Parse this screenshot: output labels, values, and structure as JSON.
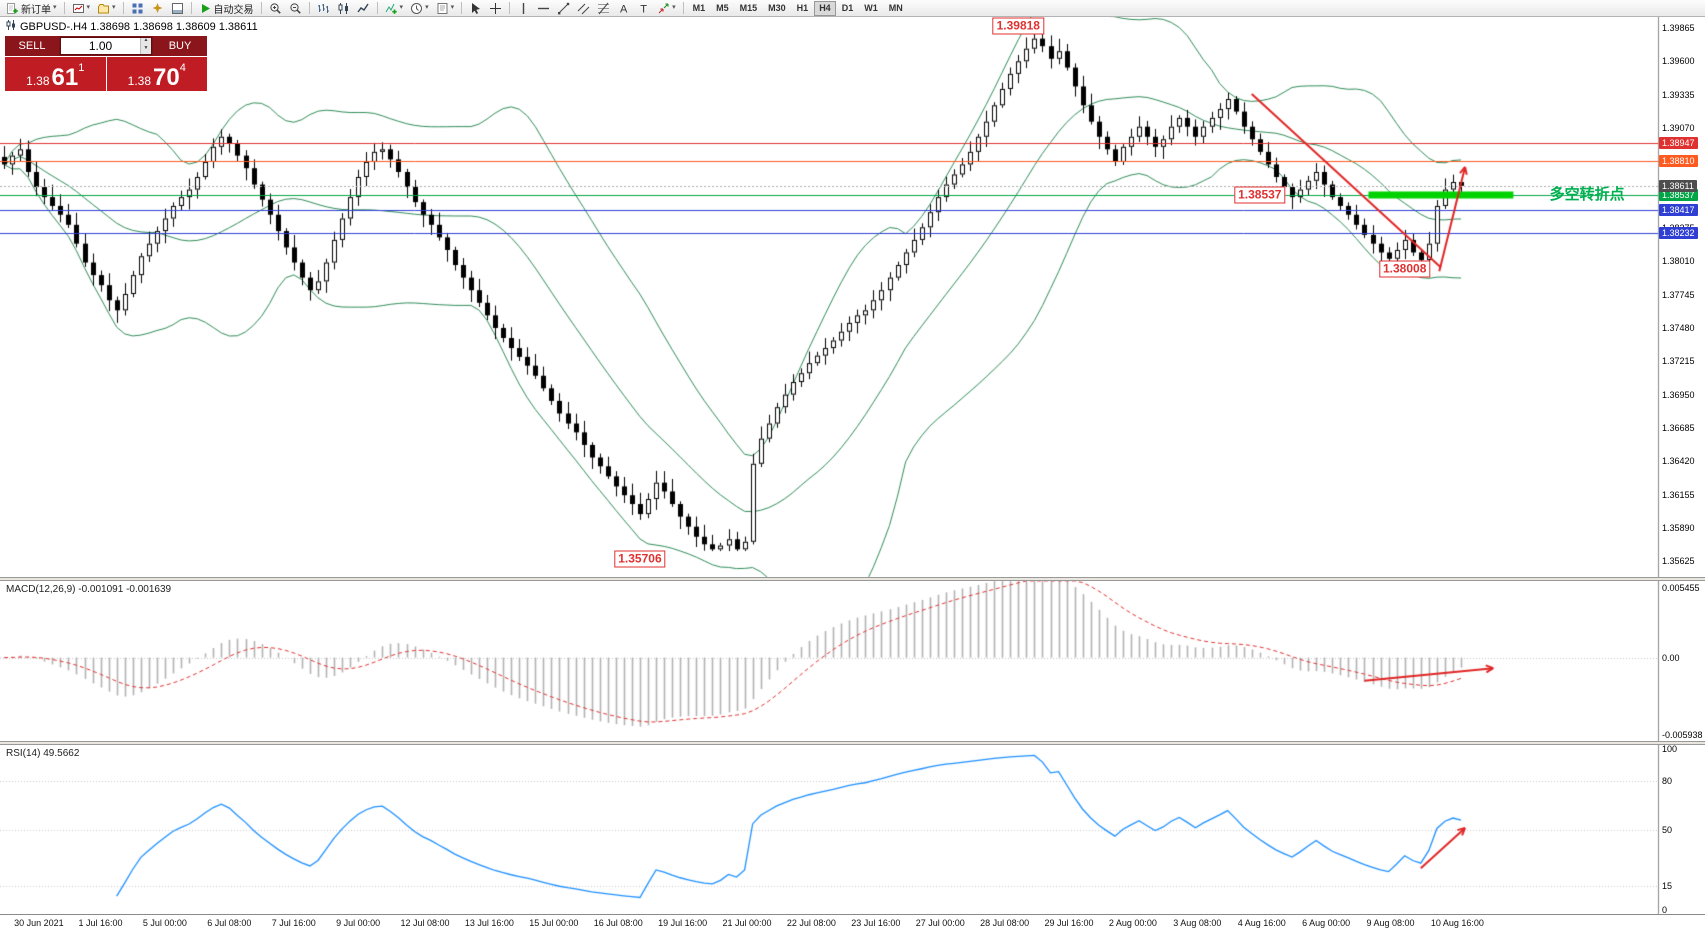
{
  "toolbar": {
    "items": [
      {
        "type": "button",
        "name": "new-order-button",
        "icon": "new-order",
        "label": "新订单",
        "caret": true
      },
      {
        "type": "sep"
      },
      {
        "type": "button",
        "name": "new-chart-button",
        "icon": "chart-window",
        "caret": true
      },
      {
        "type": "button",
        "name": "profiles-button",
        "icon": "profiles",
        "caret": true
      },
      {
        "type": "sep"
      },
      {
        "type": "button",
        "name": "market-watch-button",
        "icon": "grid"
      },
      {
        "type": "button",
        "name": "navigator-button",
        "icon": "star"
      },
      {
        "type": "button",
        "name": "terminal-button",
        "icon": "terminal"
      },
      {
        "type": "sep"
      },
      {
        "type": "button",
        "name": "autotrading-button",
        "icon": "play",
        "label": "自动交易"
      },
      {
        "type": "sep"
      },
      {
        "type": "button",
        "name": "zoom-in-button",
        "icon": "zoom-in"
      },
      {
        "type": "button",
        "name": "zoom-out-button",
        "icon": "zoom-out"
      },
      {
        "type": "sep"
      },
      {
        "type": "button",
        "name": "bar-chart-button",
        "icon": "bars"
      },
      {
        "type": "button",
        "name": "candlestick-chart-button",
        "icon": "candles"
      },
      {
        "type": "button",
        "name": "line-chart-button",
        "icon": "line"
      },
      {
        "type": "sep"
      },
      {
        "type": "button",
        "name": "indicators-button",
        "icon": "indicator",
        "caret": true
      },
      {
        "type": "button",
        "name": "periods-button",
        "icon": "clock",
        "caret": true
      },
      {
        "type": "button",
        "name": "templates-button",
        "icon": "template",
        "caret": true
      },
      {
        "type": "sep"
      },
      {
        "type": "button",
        "name": "cursor-button",
        "icon": "cursor"
      },
      {
        "type": "button",
        "name": "crosshair-button",
        "icon": "crosshair"
      },
      {
        "type": "sep"
      },
      {
        "type": "button",
        "name": "vertical-line-button",
        "icon": "vline"
      },
      {
        "type": "button",
        "name": "horizontal-line-button",
        "icon": "hline"
      },
      {
        "type": "button",
        "name": "trendline-button",
        "icon": "trend"
      },
      {
        "type": "button",
        "name": "channel-button",
        "icon": "channel"
      },
      {
        "type": "button",
        "name": "fibonacci-button",
        "icon": "fibo"
      },
      {
        "type": "button",
        "name": "text-button",
        "icon": "textA"
      },
      {
        "type": "button",
        "name": "label-button",
        "icon": "textT"
      },
      {
        "type": "button",
        "name": "arrows-button",
        "icon": "arrows",
        "caret": true
      },
      {
        "type": "sep"
      },
      {
        "type": "tf",
        "name": "timeframe-m1-button",
        "label": "M1"
      },
      {
        "type": "tf",
        "name": "timeframe-m5-button",
        "label": "M5"
      },
      {
        "type": "tf",
        "name": "timeframe-m15-button",
        "label": "M15"
      },
      {
        "type": "tf",
        "name": "timeframe-m30-button",
        "label": "M30"
      },
      {
        "type": "tf",
        "name": "timeframe-h1-button",
        "label": "H1"
      },
      {
        "type": "tf",
        "name": "timeframe-h4-button",
        "label": "H4",
        "active": true
      },
      {
        "type": "tf",
        "name": "timeframe-d1-button",
        "label": "D1"
      },
      {
        "type": "tf",
        "name": "timeframe-w1-button",
        "label": "W1"
      },
      {
        "type": "tf",
        "name": "timeframe-mn-button",
        "label": "MN"
      }
    ]
  },
  "chart": {
    "symbol_line": "GBPUSD-.H4 1.38698 1.38698 1.38609 1.38611"
  },
  "one_click": {
    "sell_label": "SELL",
    "buy_label": "BUY",
    "volume": "1.00",
    "sell_price_small": "1.38",
    "sell_price_big": "61",
    "sell_price_sup": "1",
    "buy_price_small": "1.38",
    "buy_price_big": "70",
    "buy_price_sup": "4"
  },
  "chart_data": {
    "type": "candlestick",
    "symbol": "GBPUSD-",
    "period": "H4",
    "view": {
      "bar_width": 8.05,
      "price_min": 1.355,
      "price_max": 1.3996
    },
    "closes": [
      1.3878,
      1.3885,
      1.389,
      1.3872,
      1.386,
      1.3852,
      1.3845,
      1.3838,
      1.383,
      1.3815,
      1.38,
      1.379,
      1.3782,
      1.377,
      1.3762,
      1.3775,
      1.379,
      1.3805,
      1.3815,
      1.3825,
      1.3835,
      1.3845,
      1.3852,
      1.3858,
      1.3868,
      1.388,
      1.3892,
      1.39,
      1.3895,
      1.3885,
      1.3875,
      1.3862,
      1.385,
      1.3838,
      1.3825,
      1.3812,
      1.38,
      1.3788,
      1.3778,
      1.3785,
      1.38,
      1.3818,
      1.3835,
      1.3852,
      1.3868,
      1.388,
      1.3888,
      1.389,
      1.3882,
      1.3872,
      1.386,
      1.3848,
      1.3838,
      1.383,
      1.382,
      1.381,
      1.3798,
      1.3788,
      1.3778,
      1.3768,
      1.3758,
      1.3748,
      1.374,
      1.3732,
      1.3725,
      1.3718,
      1.371,
      1.37,
      1.369,
      1.368,
      1.3672,
      1.3665,
      1.3655,
      1.3645,
      1.3638,
      1.363,
      1.3622,
      1.3615,
      1.3608,
      1.36,
      1.3612,
      1.3625,
      1.3618,
      1.3608,
      1.3598,
      1.359,
      1.3582,
      1.3576,
      1.3572,
      1.3575,
      1.358,
      1.3572,
      1.3578,
      1.364,
      1.366,
      1.3672,
      1.3685,
      1.3695,
      1.3705,
      1.3712,
      1.372,
      1.3726,
      1.3732,
      1.3738,
      1.3745,
      1.3752,
      1.3758,
      1.3762,
      1.377,
      1.3778,
      1.3788,
      1.3798,
      1.3808,
      1.3818,
      1.3828,
      1.384,
      1.3852,
      1.3862,
      1.387,
      1.3878,
      1.3888,
      1.39,
      1.3912,
      1.3925,
      1.3938,
      1.395,
      1.396,
      1.397,
      1.3978,
      1.3972,
      1.3962,
      1.3968,
      1.3955,
      1.394,
      1.3925,
      1.3912,
      1.39,
      1.389,
      1.388,
      1.3892,
      1.39,
      1.3908,
      1.39,
      1.3892,
      1.3898,
      1.3908,
      1.3915,
      1.3908,
      1.39,
      1.3908,
      1.3915,
      1.3922,
      1.393,
      1.392,
      1.3908,
      1.3898,
      1.3888,
      1.3878,
      1.3868,
      1.386,
      1.3852,
      1.3858,
      1.3865,
      1.3872,
      1.3862,
      1.3852,
      1.3845,
      1.3838,
      1.383,
      1.3822,
      1.3815,
      1.3808,
      1.3803,
      1.381,
      1.3818,
      1.3808,
      1.3802,
      1.3815,
      1.3845,
      1.3858,
      1.3864,
      1.3861
    ],
    "extremes": [
      {
        "bar": 91,
        "low": 1.35706,
        "clamp_from": 0,
        "clamp_to": 181
      },
      {
        "bar": 128,
        "high": 1.39818,
        "clamp_from": 0,
        "clamp_to": 181
      },
      {
        "bar": 176,
        "low": 1.38008,
        "clamp_from": 160,
        "clamp_to": 181
      }
    ],
    "candle_colors": {
      "bull": "#ffffff",
      "bear": "#000000",
      "outline": "#000000"
    },
    "x_labels": [
      {
        "bar": 2,
        "text": "30 Jun 2021"
      },
      {
        "bar": 10,
        "text": "1 Jul 16:00"
      },
      {
        "bar": 18,
        "text": "5 Jul 00:00"
      },
      {
        "bar": 26,
        "text": "6 Jul 08:00"
      },
      {
        "bar": 34,
        "text": "7 Jul 16:00"
      },
      {
        "bar": 42,
        "text": "9 Jul 00:00"
      },
      {
        "bar": 50,
        "text": "12 Jul 08:00"
      },
      {
        "bar": 58,
        "text": "13 Jul 16:00"
      },
      {
        "bar": 66,
        "text": "15 Jul 00:00"
      },
      {
        "bar": 74,
        "text": "16 Jul 08:00"
      },
      {
        "bar": 82,
        "text": "19 Jul 16:00"
      },
      {
        "bar": 90,
        "text": "21 Jul 00:00"
      },
      {
        "bar": 98,
        "text": "22 Jul 08:00"
      },
      {
        "bar": 106,
        "text": "23 Jul 16:00"
      },
      {
        "bar": 114,
        "text": "27 Jul 00:00"
      },
      {
        "bar": 122,
        "text": "28 Jul 08:00"
      },
      {
        "bar": 130,
        "text": "29 Jul 16:00"
      },
      {
        "bar": 138,
        "text": "2 Aug 00:00"
      },
      {
        "bar": 146,
        "text": "3 Aug 08:00"
      },
      {
        "bar": 154,
        "text": "4 Aug 16:00"
      },
      {
        "bar": 162,
        "text": "6 Aug 00:00"
      },
      {
        "bar": 170,
        "text": "9 Aug 08:00"
      },
      {
        "bar": 178,
        "text": "10 Aug 16:00"
      }
    ],
    "y_axis": {
      "labels": [
        "1.39865",
        "1.39600",
        "1.39335",
        "1.39070",
        "1.38805",
        "1.38540",
        "1.38275",
        "1.38010",
        "1.37745",
        "1.37480",
        "1.37215",
        "1.36950",
        "1.36685",
        "1.36420",
        "1.36155",
        "1.35890",
        "1.35625"
      ]
    },
    "indicators": {
      "bollinger": {
        "period": 20,
        "deviation": 2,
        "color": "#2e8b57"
      },
      "macd": {
        "label": "MACD(12,26,9) -0.001091 -0.001639",
        "value": -0.001091,
        "signal_value": -0.001639,
        "range": {
          "max": 0.005455,
          "min": -0.005938
        },
        "axis_labels": [
          "0.005455",
          "0.00",
          "-0.005938"
        ],
        "hist_color": "#b3b3b3",
        "signal_color": "#e03131"
      },
      "rsi": {
        "label": "RSI(14) 49.5662",
        "period": 14,
        "value": 49.5662,
        "axis_labels": [
          "100",
          "80",
          "50",
          "15",
          "0"
        ],
        "levels": [
          80,
          50,
          15
        ],
        "color": "#1e90ff"
      }
    },
    "hlines": [
      {
        "price": 1.38947,
        "color": "#e03131",
        "tag": "1.38947",
        "tag_bg": "#e03131"
      },
      {
        "price": 1.3881,
        "color": "#ff5a1f",
        "tag": "1.38810",
        "tag_bg": "#ff5a1f"
      },
      {
        "price": 1.38537,
        "color": "#00a546",
        "tag": "1.38537",
        "tag_bg": "#00a546"
      },
      {
        "price": 1.38417,
        "color": "#2f3fd3",
        "tag": "1.38417",
        "tag_bg": "#2f3fd3"
      },
      {
        "price": 1.38232,
        "color": "#2f3fd3",
        "tag": "1.38232",
        "tag_bg": "#2f3fd3"
      }
    ],
    "bid_line": {
      "price": 1.38611,
      "tag": "1.38611",
      "tag_bg": "#4d4d4d",
      "color": "#aaaaaa"
    },
    "callouts": [
      {
        "text": "1.39818",
        "bar": 126,
        "price": 1.3988
      },
      {
        "text": "1.38537",
        "bar": 156,
        "price": 1.38537
      },
      {
        "text": "1.38008",
        "bar": 174,
        "price": 1.3795
      },
      {
        "text": "1.35706",
        "bar": 79,
        "price": 1.3564
      }
    ],
    "trendlines": [
      {
        "bar1": 155,
        "price1": 1.3934,
        "bar2": 178.5,
        "price2": 1.3796,
        "color": "#e02525",
        "width": 2
      }
    ],
    "arrows": [
      {
        "panel": "main",
        "bar1": 178.3,
        "v1": 1.3793,
        "bar2": 181.5,
        "v2": 1.3876,
        "color": "#e02525",
        "width": 2
      },
      {
        "panel": "macd",
        "bar1": 169,
        "v1": -0.00165,
        "bar2": 185,
        "v2": -0.00075,
        "color": "#e02525",
        "width": 2
      },
      {
        "panel": "rsi",
        "bar1": 176,
        "v1": 26,
        "bar2": 181.5,
        "v2": 51,
        "color": "#e02525",
        "width": 2
      }
    ],
    "highlight_zone": {
      "bar_start": 169.5,
      "bar_end": 187.5,
      "price": 1.38537,
      "thickness": 7,
      "color": "#00d200"
    },
    "note": {
      "text": "多空转折点",
      "bar": 192,
      "price": 1.3856,
      "color": "#00b050"
    }
  }
}
